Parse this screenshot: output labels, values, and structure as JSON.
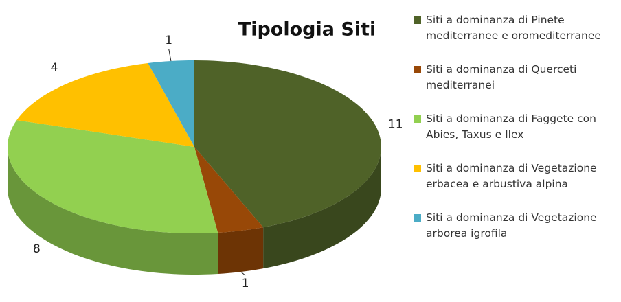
{
  "chart_data": {
    "type": "pie",
    "title": "Tipologia Siti",
    "categories": [
      "Siti a dominanza di Pinete mediterranee e oromediterranee",
      "Siti a dominanza di Querceti mediterranei",
      "Siti a dominanza di Faggete con Abies, Taxus e Ilex",
      "Siti a dominanza di Vegetazione erbacea e arbustiva alpina",
      "Siti a dominanza di Vegetazione arborea igrofila"
    ],
    "values": [
      11,
      1,
      8,
      4,
      1
    ],
    "colors": [
      "#4f6228",
      "#984807",
      "#92d050",
      "#ffc000",
      "#4bacc6"
    ],
    "legend": "right"
  }
}
